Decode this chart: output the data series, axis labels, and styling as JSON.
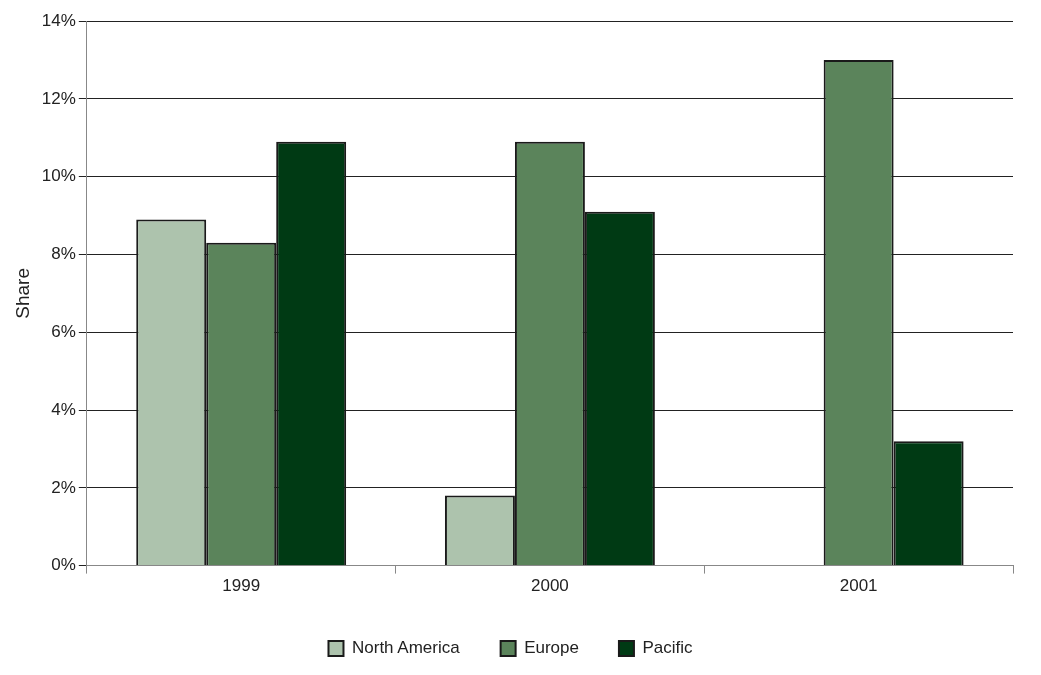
{
  "chart_data": {
    "type": "bar",
    "ylabel": "Share",
    "categories": [
      "1999",
      "2000",
      "2001"
    ],
    "series": [
      {
        "name": "North America",
        "color": "#adc3ad",
        "values": [
          8.9,
          1.8,
          null
        ]
      },
      {
        "name": "Europe",
        "color": "#5b845b",
        "values": [
          8.3,
          10.9,
          13.0
        ]
      },
      {
        "name": "Pacific",
        "color": "#003a14",
        "values": [
          10.9,
          9.1,
          3.2
        ]
      }
    ],
    "ylim": [
      0,
      14
    ],
    "yticks": [
      {
        "value": 0,
        "label": "0%"
      },
      {
        "value": 2,
        "label": "2%"
      },
      {
        "value": 4,
        "label": "4%"
      },
      {
        "value": 6,
        "label": "6%"
      },
      {
        "value": 8,
        "label": "8%"
      },
      {
        "value": 10,
        "label": "10%"
      },
      {
        "value": 12,
        "label": "12%"
      },
      {
        "value": 14,
        "label": "14%"
      }
    ],
    "grid": "y",
    "legend": "bottom"
  }
}
